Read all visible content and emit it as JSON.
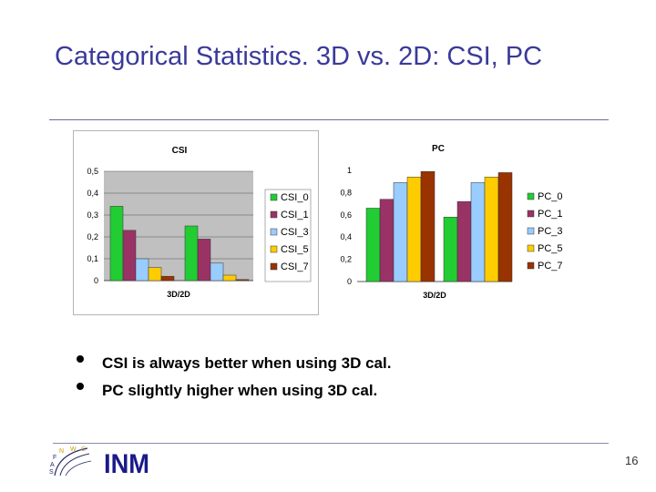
{
  "slide": {
    "title": "Categorical Statistics. 3D vs. 2D: CSI, PC",
    "bullets": [
      "CSI is always better when using 3D cal.",
      "PC slightly higher when using 3D cal."
    ],
    "page_number": "16",
    "logo_left_text": [
      "S",
      "A",
      "F",
      "N",
      "W",
      "C"
    ],
    "logo_right_text": "INM"
  },
  "chart_data": [
    {
      "type": "bar",
      "title": "CSI",
      "xlabel": "3D/2D",
      "ylabel": "",
      "ylim": [
        0,
        0.5
      ],
      "yticks": [
        "0",
        "0,1",
        "0,2",
        "0,3",
        "0,4",
        "0,5"
      ],
      "grid": true,
      "legend": "right",
      "categories": [
        "",
        ""
      ],
      "series": [
        {
          "name": "CSI_0",
          "color": "#22cc33",
          "values": [
            0.34,
            0.25
          ]
        },
        {
          "name": "CSI_1",
          "color": "#993366",
          "values": [
            0.23,
            0.19
          ]
        },
        {
          "name": "CSI_3",
          "color": "#99ccff",
          "values": [
            0.1,
            0.08
          ]
        },
        {
          "name": "CSI_5",
          "color": "#ffcc00",
          "values": [
            0.06,
            0.025
          ]
        },
        {
          "name": "CSI_7",
          "color": "#993300",
          "values": [
            0.02,
            0.005
          ]
        }
      ]
    },
    {
      "type": "bar",
      "title": "PC",
      "xlabel": "3D/2D",
      "ylabel": "",
      "ylim": [
        0,
        1
      ],
      "yticks": [
        "0",
        "0,2",
        "0,4",
        "0,6",
        "0,8",
        "1"
      ],
      "grid": false,
      "legend": "right",
      "categories": [
        "",
        ""
      ],
      "series": [
        {
          "name": "PC_0",
          "color": "#22cc33",
          "values": [
            0.66,
            0.58
          ]
        },
        {
          "name": "PC_1",
          "color": "#993366",
          "values": [
            0.74,
            0.72
          ]
        },
        {
          "name": "PC_3",
          "color": "#99ccff",
          "values": [
            0.89,
            0.89
          ]
        },
        {
          "name": "PC_5",
          "color": "#ffcc00",
          "values": [
            0.94,
            0.94
          ]
        },
        {
          "name": "PC_7",
          "color": "#993300",
          "values": [
            0.99,
            0.98
          ]
        }
      ]
    }
  ]
}
